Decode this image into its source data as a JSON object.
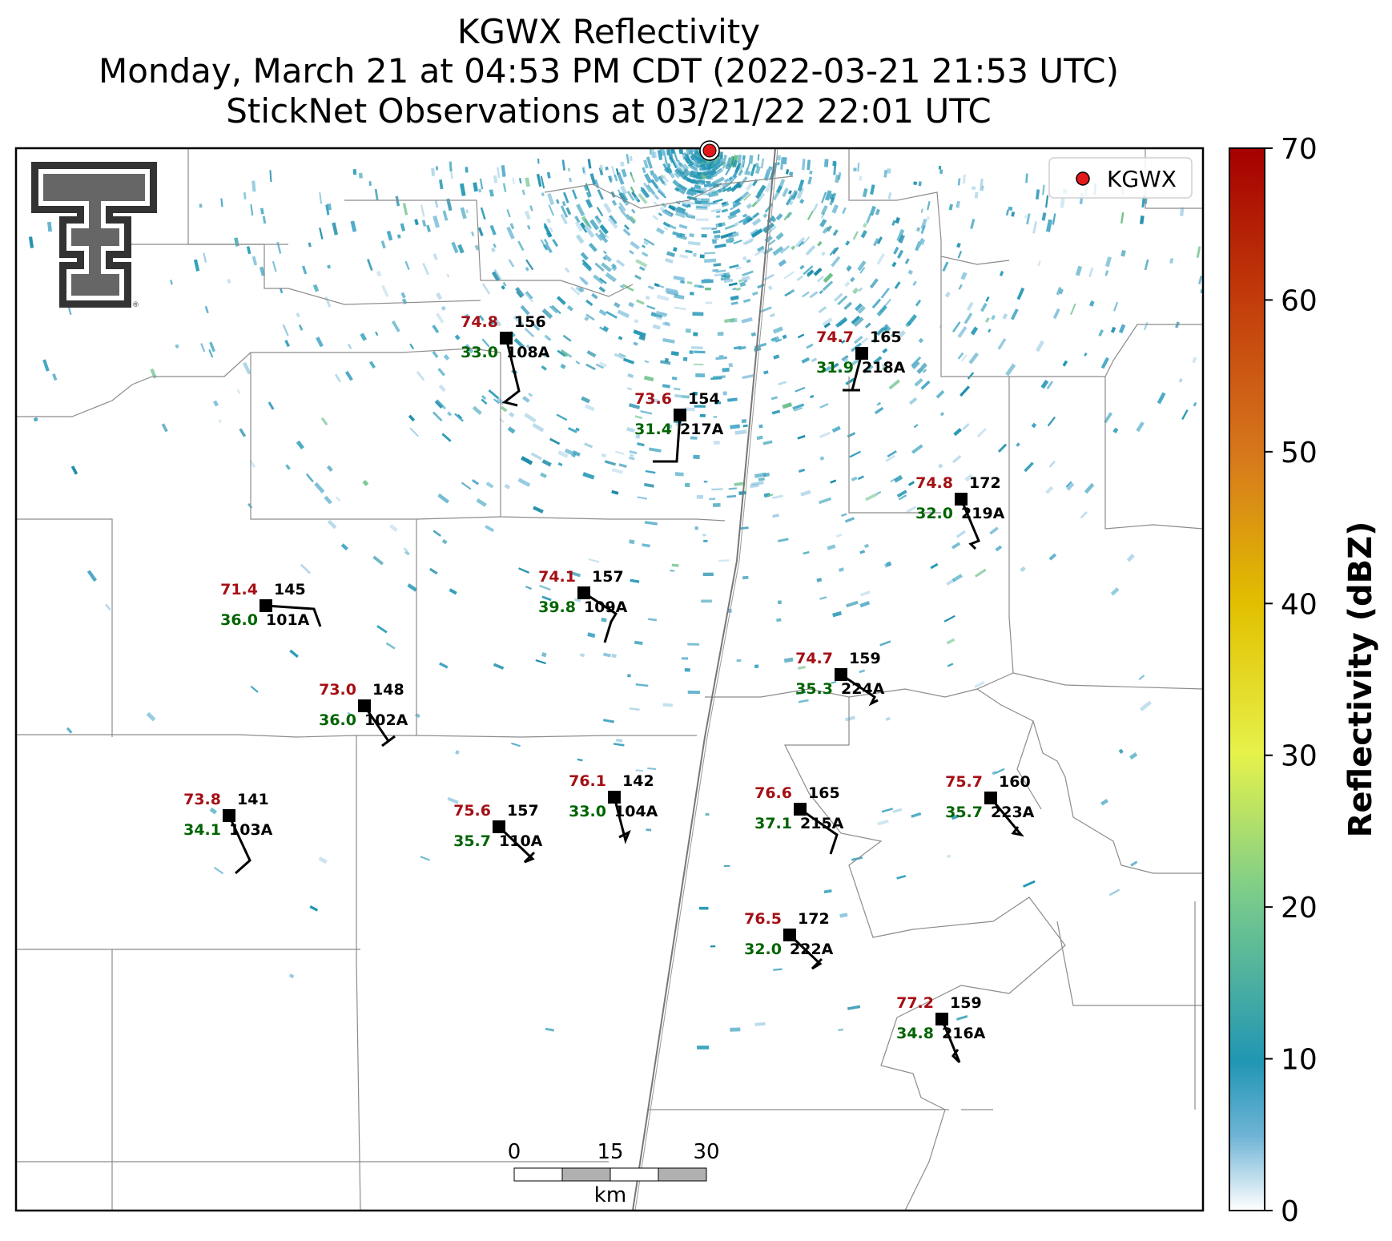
{
  "title": {
    "line1": "KGWX Reflectivity",
    "line2": "Monday, March 21 at 04:53 PM CDT (2022-03-21 21:53 UTC)",
    "line3": "StickNet Observations at 03/21/22 22:01 UTC"
  },
  "legend": {
    "label": "KGWX",
    "marker_color": "#e31a1c"
  },
  "colorbar": {
    "label": "Reflectivity (dBZ)",
    "ticks": [
      "0",
      "10",
      "20",
      "30",
      "40",
      "50",
      "60",
      "70"
    ],
    "min": 0,
    "max": 70
  },
  "scale_bar": {
    "labels": [
      "0",
      "15",
      "30"
    ],
    "unit": "km"
  },
  "stations": [
    {
      "id": "108A",
      "temp": "74.8",
      "dew": "33.0",
      "pres": "156"
    },
    {
      "id": "218A",
      "temp": "74.7",
      "dew": "31.9",
      "pres": "165"
    },
    {
      "id": "217A",
      "temp": "73.6",
      "dew": "31.4",
      "pres": "154"
    },
    {
      "id": "219A",
      "temp": "74.8",
      "dew": "32.0",
      "pres": "172"
    },
    {
      "id": "109A",
      "temp": "74.1",
      "dew": "39.8",
      "pres": "157"
    },
    {
      "id": "101A",
      "temp": "71.4",
      "dew": "36.0",
      "pres": "145"
    },
    {
      "id": "224A",
      "temp": "74.7",
      "dew": "35.3",
      "pres": "159"
    },
    {
      "id": "102A",
      "temp": "73.0",
      "dew": "36.0",
      "pres": "148"
    },
    {
      "id": "103A",
      "temp": "73.8",
      "dew": "34.1",
      "pres": "141"
    },
    {
      "id": "110A",
      "temp": "75.6",
      "dew": "35.7",
      "pres": "157"
    },
    {
      "id": "104A",
      "temp": "76.1",
      "dew": "33.0",
      "pres": "142"
    },
    {
      "id": "215A",
      "temp": "76.6",
      "dew": "37.1",
      "pres": "165"
    },
    {
      "id": "223A",
      "temp": "75.7",
      "dew": "35.7",
      "pres": "160"
    },
    {
      "id": "222A",
      "temp": "76.5",
      "dew": "32.0",
      "pres": "172"
    },
    {
      "id": "216A",
      "temp": "77.2",
      "dew": "34.8",
      "pres": "159"
    }
  ]
}
